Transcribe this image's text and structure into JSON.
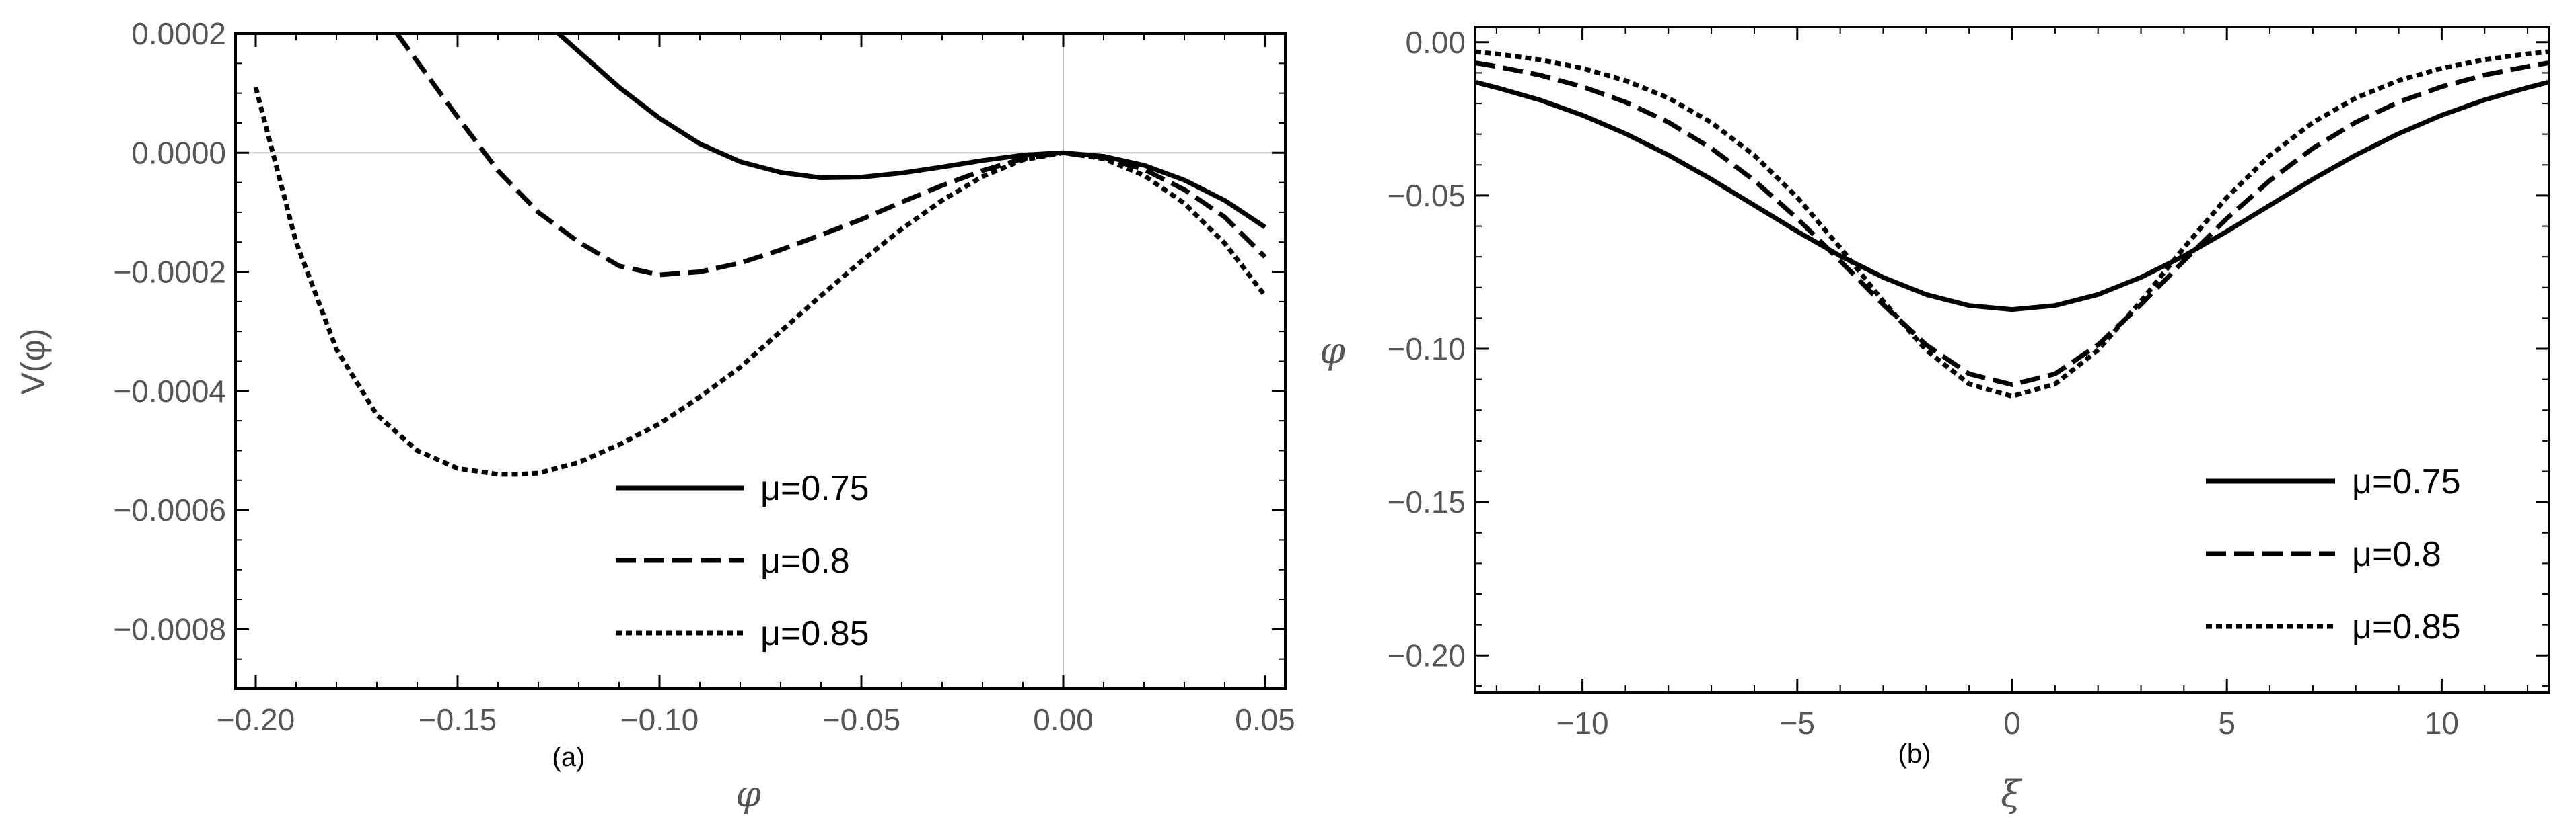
{
  "chart_data": [
    {
      "type": "line",
      "panel_label": "(a)",
      "xlabel": "φ",
      "ylabel": "V(φ)",
      "xlim": [
        -0.205,
        0.055
      ],
      "ylim": [
        -0.0009,
        0.0002
      ],
      "x_ticks": [
        "-0.20",
        "-0.15",
        "-0.10",
        "-0.05",
        "0.00",
        "0.05"
      ],
      "y_ticks": [
        "0.0002",
        "0.0000",
        "-0.0002",
        "-0.0004",
        "-0.0006",
        "-0.0008"
      ],
      "grid": "zero lines only",
      "legend_position": "bottom-right",
      "series": [
        {
          "name": "μ=0.75",
          "style": "solid",
          "x": [
            -0.125,
            -0.11,
            -0.1,
            -0.09,
            -0.08,
            -0.07,
            -0.06,
            -0.05,
            -0.04,
            -0.03,
            -0.02,
            -0.01,
            0.0,
            0.01,
            0.02,
            0.03,
            0.04,
            0.05
          ],
          "y": [
            0.0002,
            0.00011,
            5.8e-05,
            1.5e-05,
            -1.5e-05,
            -3.3e-05,
            -4.2e-05,
            -4.1e-05,
            -3.4e-05,
            -2.4e-05,
            -1.3e-05,
            -4e-06,
            0.0,
            -6e-06,
            -2.1e-05,
            -4.6e-05,
            -8e-05,
            -0.000125
          ]
        },
        {
          "name": "μ=0.8",
          "style": "dashed",
          "x": [
            -0.165,
            -0.15,
            -0.14,
            -0.13,
            -0.12,
            -0.11,
            -0.1,
            -0.09,
            -0.08,
            -0.07,
            -0.06,
            -0.05,
            -0.04,
            -0.03,
            -0.02,
            -0.01,
            0.0,
            0.01,
            0.02,
            0.03,
            0.04,
            0.05
          ],
          "y": [
            0.0002,
            6e-05,
            -3e-05,
            -0.0001,
            -0.00015,
            -0.00019,
            -0.000205,
            -0.0002,
            -0.000185,
            -0.000163,
            -0.000138,
            -0.000112,
            -8.3e-05,
            -5.5e-05,
            -3e-05,
            -1e-05,
            0.0,
            -8e-06,
            -2.8e-05,
            -6.2e-05,
            -0.000108,
            -0.000175
          ]
        },
        {
          "name": "μ=0.85",
          "style": "dotted",
          "x": [
            -0.2,
            -0.19,
            -0.18,
            -0.17,
            -0.16,
            -0.15,
            -0.14,
            -0.135,
            -0.13,
            -0.12,
            -0.11,
            -0.1,
            -0.09,
            -0.08,
            -0.07,
            -0.06,
            -0.05,
            -0.04,
            -0.03,
            -0.02,
            -0.01,
            0.0,
            0.01,
            0.02,
            0.03,
            0.04,
            0.05
          ],
          "y": [
            0.00011,
            -0.00015,
            -0.00033,
            -0.00044,
            -0.0005,
            -0.00053,
            -0.00054,
            -0.00054,
            -0.000538,
            -0.00052,
            -0.00049,
            -0.000455,
            -0.00041,
            -0.00036,
            -0.0003,
            -0.00024,
            -0.000182,
            -0.000128,
            -8e-05,
            -4e-05,
            -1.2e-05,
            0.0,
            -1e-05,
            -3.8e-05,
            -8.5e-05,
            -0.000152,
            -0.00024
          ]
        }
      ]
    },
    {
      "type": "line",
      "panel_label": "(b)",
      "xlabel": "ξ",
      "ylabel": "φ",
      "xlim": [
        -12.5,
        12.5
      ],
      "ylim": [
        -0.212,
        0.005
      ],
      "x_ticks": [
        "-10",
        "-5",
        "0",
        "5",
        "10"
      ],
      "y_ticks": [
        "0.00",
        "-0.05",
        "-0.10",
        "-0.15",
        "-0.20"
      ],
      "grid": "off",
      "legend_position": "bottom-right",
      "series": [
        {
          "name": "μ=0.75",
          "style": "solid",
          "x": [
            -12.5,
            -12,
            -11,
            -10,
            -9,
            -8,
            -7,
            -6,
            -5,
            -4,
            -3,
            -2,
            -1,
            0,
            1,
            2,
            3,
            4,
            5,
            6,
            7,
            8,
            9,
            10,
            11,
            12,
            12.5
          ],
          "y": [
            -0.013,
            -0.0148,
            -0.0188,
            -0.0238,
            -0.0298,
            -0.0368,
            -0.0447,
            -0.0532,
            -0.0617,
            -0.0697,
            -0.0767,
            -0.0823,
            -0.0859,
            -0.0872,
            -0.0859,
            -0.0823,
            -0.0767,
            -0.0697,
            -0.0617,
            -0.0532,
            -0.0447,
            -0.0368,
            -0.0298,
            -0.0238,
            -0.0188,
            -0.0148,
            -0.013
          ]
        },
        {
          "name": "μ=0.8",
          "style": "dashed",
          "x": [
            -12.5,
            -12,
            -11,
            -10,
            -9,
            -8,
            -7,
            -6,
            -5,
            -4,
            -3,
            -2,
            -1,
            0,
            1,
            2,
            3,
            4,
            5,
            6,
            7,
            8,
            9,
            10,
            11,
            12,
            12.5
          ],
          "y": [
            -0.0067,
            -0.0079,
            -0.0107,
            -0.0145,
            -0.0195,
            -0.0261,
            -0.0346,
            -0.0451,
            -0.0575,
            -0.0713,
            -0.0856,
            -0.0987,
            -0.1082,
            -0.1117,
            -0.1082,
            -0.0987,
            -0.0856,
            -0.0713,
            -0.0575,
            -0.0451,
            -0.0346,
            -0.0261,
            -0.0195,
            -0.0145,
            -0.0107,
            -0.0079,
            -0.0067
          ]
        },
        {
          "name": "μ=0.85",
          "style": "dotted",
          "x": [
            -12.5,
            -12,
            -11,
            -10,
            -9,
            -8,
            -7,
            -6,
            -5,
            -4,
            -3,
            -2,
            -1,
            0,
            1,
            2,
            3,
            4,
            5,
            6,
            7,
            8,
            9,
            10,
            11,
            12,
            12.5
          ],
          "y": [
            -0.0031,
            -0.0038,
            -0.0057,
            -0.0085,
            -0.0125,
            -0.0182,
            -0.0262,
            -0.0369,
            -0.0506,
            -0.067,
            -0.0845,
            -0.1004,
            -0.1115,
            -0.1155,
            -0.1115,
            -0.1004,
            -0.0845,
            -0.067,
            -0.0506,
            -0.0369,
            -0.0262,
            -0.0182,
            -0.0125,
            -0.0085,
            -0.0057,
            -0.0038,
            -0.0031
          ]
        }
      ]
    }
  ]
}
